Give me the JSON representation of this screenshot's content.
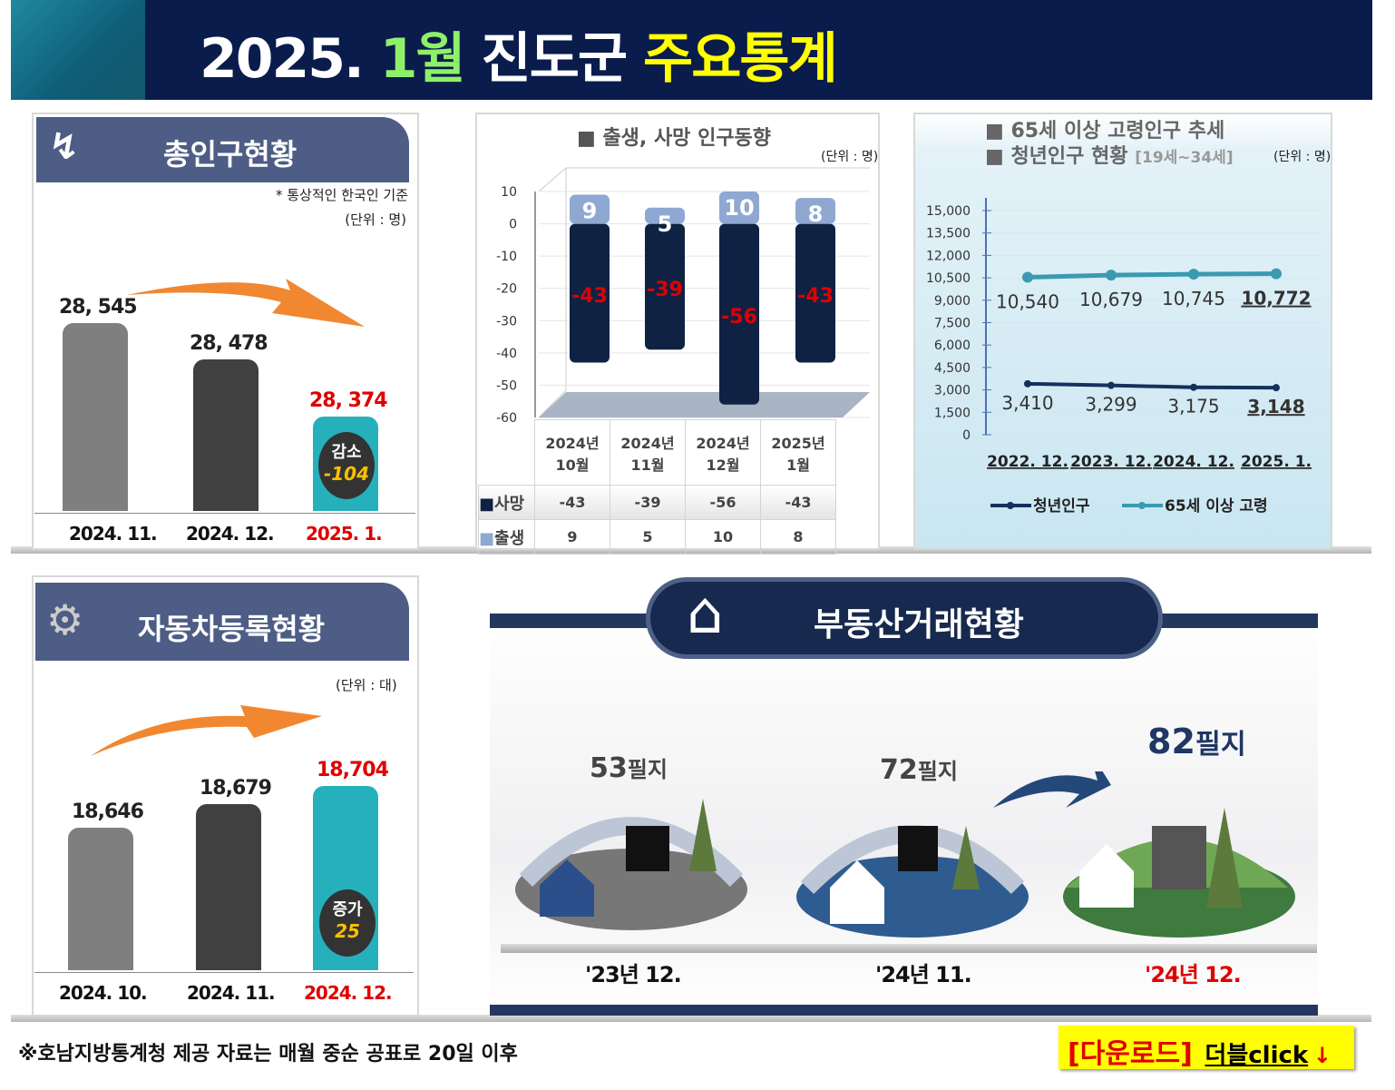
{
  "header": {
    "title_year": "2025.",
    "title_month": "1월",
    "title_region": "진도군",
    "title_main": "주요통계"
  },
  "population": {
    "title": "총인구현황",
    "note": "* 통상적인 한국인 기준",
    "unit": "(단위 : 명)",
    "categories": [
      "2024. 11.",
      "2024. 12.",
      "2025. 1."
    ],
    "value_labels": [
      "28, 545",
      "28, 478",
      "28, 374"
    ],
    "values": [
      28545,
      28478,
      28374
    ],
    "badge_label": "감소",
    "badge_value": "-104",
    "colors": [
      "#7f7f7f",
      "#404040",
      "#26b0bb"
    ]
  },
  "vehicles": {
    "title": "자동차등록현황",
    "unit": "(단위 : 대)",
    "categories": [
      "2024. 10.",
      "2024. 11.",
      "2024. 12."
    ],
    "value_labels": [
      "18,646",
      "18,679",
      "18,704"
    ],
    "values": [
      18646,
      18679,
      18704
    ],
    "badge_label": "증가",
    "badge_value": "25"
  },
  "chart_data": [
    {
      "type": "bar",
      "title": "■ 출생, 사망 인구동향",
      "unit": "(단위 : 명)",
      "categories": [
        "2024년 10월",
        "2024년 11월",
        "2024년 12월",
        "2025년 1월"
      ],
      "category_lines": [
        [
          "2024년",
          "10월"
        ],
        [
          "2024년",
          "11월"
        ],
        [
          "2024년",
          "12월"
        ],
        [
          "2025년",
          "1월"
        ]
      ],
      "ylim": [
        -60,
        10
      ],
      "yticks": [
        "10",
        "0",
        "-10",
        "-20",
        "-30",
        "-40",
        "-50",
        "-60"
      ],
      "series": [
        {
          "name": "사망",
          "values": [
            -43,
            -39,
            -56,
            -43
          ],
          "labels": [
            "-43",
            "-39",
            "-56",
            "-43"
          ],
          "color": "#0f2244"
        },
        {
          "name": "출생",
          "values": [
            9,
            5,
            10,
            8
          ],
          "labels": [
            "9",
            "5",
            "10",
            "8"
          ],
          "color": "#8ea8d2"
        }
      ]
    },
    {
      "type": "line",
      "title_line1": "■ 65세 이상 고령인구 추세",
      "title_line2": "■ 청년인구 현황",
      "title_sub": "[19세~34세]",
      "unit": "(단위 : 명)",
      "categories": [
        "2022. 12.",
        "2023. 12.",
        "2024. 12.",
        "2025. 1."
      ],
      "ylim": [
        0,
        15000
      ],
      "yticks": [
        "15,000",
        "13,500",
        "12,000",
        "10,500",
        "9,000",
        "7,500",
        "6,000",
        "4,500",
        "3,000",
        "1,500",
        "0"
      ],
      "series": [
        {
          "name": "청년인구",
          "values": [
            3410,
            3299,
            3175,
            3148
          ],
          "labels": [
            "3,410",
            "3,299",
            "3,175",
            "3,148"
          ],
          "color": "#15305c"
        },
        {
          "name": "65세 이상 고령",
          "values": [
            10540,
            10679,
            10745,
            10772
          ],
          "labels": [
            "10,540",
            "10,679",
            "10,745",
            "10,772"
          ],
          "color": "#3a9ab0"
        }
      ],
      "legend": "bottom"
    }
  ],
  "real_estate": {
    "title": "부동산거래현황",
    "items": [
      {
        "count": "53",
        "unit": "필지",
        "period": "'23년 12."
      },
      {
        "count": "72",
        "unit": "필지",
        "period": "'24년 11."
      },
      {
        "count": "82",
        "unit": "필지",
        "period": "'24년 12."
      }
    ]
  },
  "footer": {
    "note": "※호남지방통계청 제공 자료는 매월 중순 공표로 20일 이후",
    "download": "[다운로드]",
    "double": "더블",
    "click": "click",
    "arrow": "↓"
  }
}
